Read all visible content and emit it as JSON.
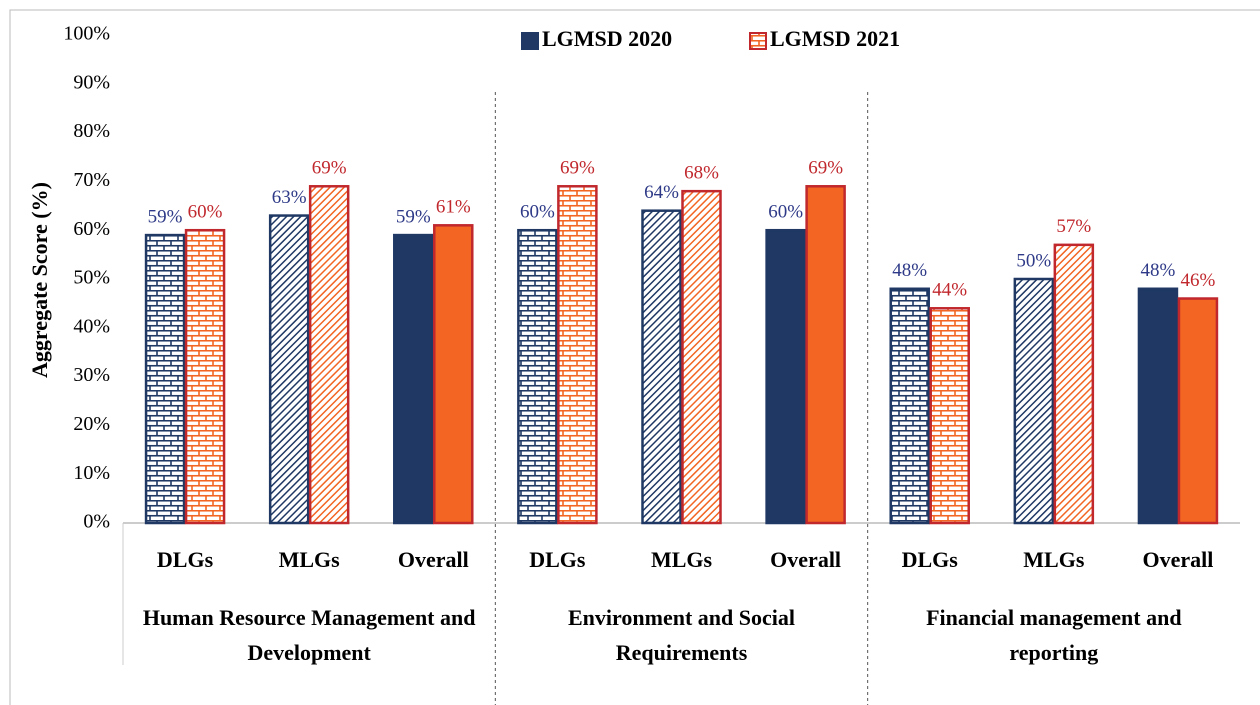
{
  "chart_data": {
    "type": "bar",
    "y_axis_label": "Aggregate Score (%)",
    "categories": [
      "DLGs",
      "MLGs",
      "Overall",
      "DLGs",
      "MLGs",
      "Overall",
      "DLGs",
      "MLGs",
      "Overall"
    ],
    "patterns": [
      "brick",
      "diagonal",
      "solid",
      "brick",
      "diagonal",
      "solid",
      "brick",
      "diagonal",
      "solid"
    ],
    "group_labels": [
      "Human Resource Management and Development",
      "Environment and Social Requirements",
      "Financial management and reporting"
    ],
    "series": [
      {
        "name": "LGMSD 2020",
        "color": "#1f3864",
        "stroke": "#1f3864",
        "label_color": "#2e3a87",
        "values": [
          59,
          63,
          59,
          60,
          64,
          60,
          48,
          50,
          48
        ],
        "value_labels": [
          "59%",
          "63%",
          "59%",
          "60%",
          "64%",
          "60%",
          "48%",
          "50%",
          "48%"
        ]
      },
      {
        "name": "LGMSD 2021",
        "color": "#f26522",
        "stroke": "#c0282d",
        "label_color": "#c0282d",
        "values": [
          60,
          69,
          61,
          69,
          68,
          69,
          44,
          57,
          46
        ],
        "value_labels": [
          "60%",
          "69%",
          "61%",
          "69%",
          "68%",
          "69%",
          "44%",
          "57%",
          "46%"
        ]
      }
    ],
    "ylim": [
      0,
      100
    ],
    "yticks": [
      {
        "value": 0,
        "label": "0%"
      },
      {
        "value": 10,
        "label": "10%"
      },
      {
        "value": 20,
        "label": "20%"
      },
      {
        "value": 30,
        "label": "30%"
      },
      {
        "value": 40,
        "label": "40%"
      },
      {
        "value": 50,
        "label": "50%"
      },
      {
        "value": 60,
        "label": "60%"
      },
      {
        "value": 70,
        "label": "70%"
      },
      {
        "value": 80,
        "label": "80%"
      },
      {
        "value": 90,
        "label": "90%"
      },
      {
        "value": 100,
        "label": "100%"
      }
    ],
    "grid": false,
    "legend": "top"
  }
}
